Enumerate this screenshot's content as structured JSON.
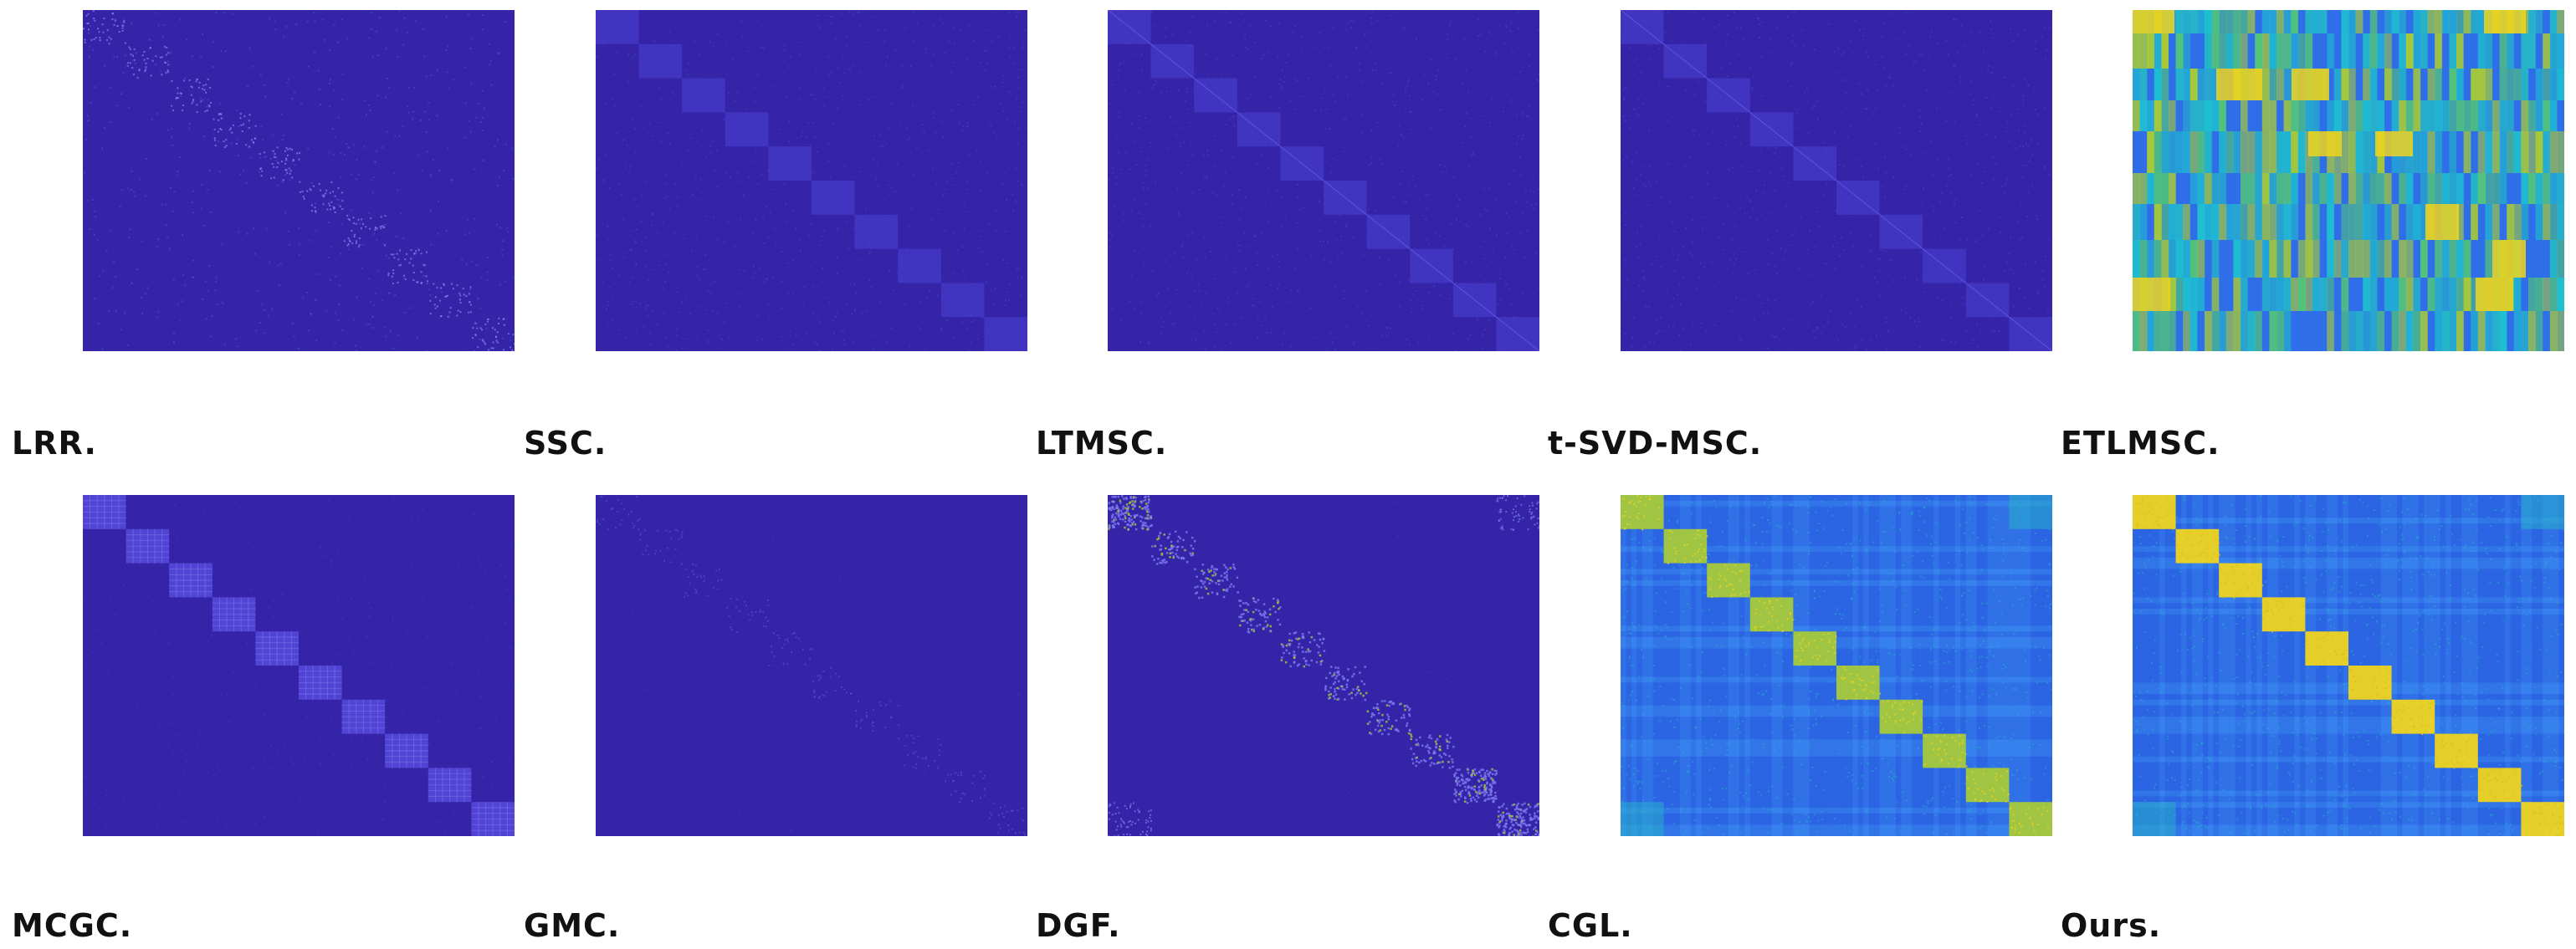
{
  "figure": {
    "panels": [
      {
        "id": "lrr",
        "caption": "LRR.",
        "style": "sparse"
      },
      {
        "id": "ssc",
        "caption": "SSC.",
        "style": "faint-blocks"
      },
      {
        "id": "ltmsc",
        "caption": "LTMSC.",
        "style": "faint-blocks-diag"
      },
      {
        "id": "tsvd",
        "caption": "t-SVD-MSC.",
        "style": "faint-blocks-diag"
      },
      {
        "id": "etlmsc",
        "caption": "ETLMSC.",
        "style": "etlmsc"
      },
      {
        "id": "mcgc",
        "caption": "MCGC.",
        "style": "grid-blocks"
      },
      {
        "id": "gmc",
        "caption": "GMC.",
        "style": "very-faint"
      },
      {
        "id": "dgf",
        "caption": "DGF.",
        "style": "dotted-blocks"
      },
      {
        "id": "cgl",
        "caption": "CGL.",
        "style": "bright-blocks"
      },
      {
        "id": "ours",
        "caption": "Ours.",
        "style": "bright-blocks-yellow"
      }
    ],
    "num_clusters": 10,
    "colors": {
      "background": "#3524a8",
      "block_faint": "#4a3fd0",
      "mid_blue": "#2f6ee8",
      "cyan": "#25b5c8",
      "green": "#a6c93a",
      "yellow": "#f0d41f"
    }
  }
}
